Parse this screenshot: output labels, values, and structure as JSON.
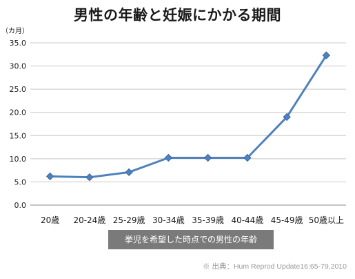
{
  "chart_data": {
    "type": "line",
    "title": "男性の年齢と妊娠にかかる期間",
    "y_unit": "（カ月）",
    "xlabel": "挙児を希望した時点での男性の年齢",
    "ylabel": "",
    "categories": [
      "20歳",
      "20-24歳",
      "25-29歳",
      "30-34歳",
      "35-39歳",
      "40-44歳",
      "45-49歳",
      "50歳以上"
    ],
    "series": [
      {
        "values": [
          6.2,
          6.0,
          7.1,
          10.2,
          10.2,
          10.2,
          19.0,
          32.3
        ]
      }
    ],
    "ylim": [
      0,
      35
    ],
    "y_ticks": [
      "0.0",
      "5.0",
      "10.0",
      "15.0",
      "20.0",
      "25.0",
      "30.0",
      "35.0"
    ],
    "grid": true,
    "legend": "none",
    "line_color": "#4f81bd",
    "marker": "diamond"
  },
  "source": "※ 出典：Hum Reprod Update16:65-79,2010"
}
